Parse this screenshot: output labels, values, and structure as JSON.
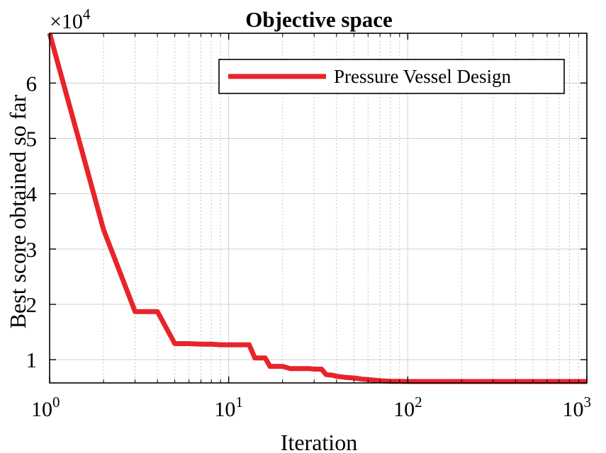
{
  "chart_data": {
    "type": "line",
    "title": "Objective space",
    "xlabel": "Iteration",
    "ylabel": "Best score obtained so far",
    "xscale": "log",
    "xlim": [
      1,
      1000
    ],
    "ylim": [
      5800,
      69000
    ],
    "y_multiplier": "×10",
    "y_multiplier_exponent": "4",
    "grid": true,
    "legend_position": "top-right",
    "x_ticks": [
      {
        "value": 1,
        "base": "10",
        "exp": "0"
      },
      {
        "value": 10,
        "base": "10",
        "exp": "1"
      },
      {
        "value": 100,
        "base": "10",
        "exp": "2"
      },
      {
        "value": 1000,
        "base": "10",
        "exp": "3"
      }
    ],
    "y_ticks": [
      {
        "value": 10000,
        "label": "1"
      },
      {
        "value": 20000,
        "label": "2"
      },
      {
        "value": 30000,
        "label": "3"
      },
      {
        "value": 40000,
        "label": "4"
      },
      {
        "value": 50000,
        "label": "5"
      },
      {
        "value": 60000,
        "label": "6"
      }
    ],
    "series": [
      {
        "name": "Pressure Vessel Design",
        "color": "#e8242a",
        "x": [
          1,
          2,
          3,
          4,
          5,
          6,
          7,
          8,
          9,
          10,
          11,
          12,
          13,
          14,
          15,
          16,
          17,
          18,
          20,
          22,
          25,
          28,
          30,
          33,
          35,
          38,
          40,
          45,
          50,
          55,
          60,
          70,
          80,
          90,
          100,
          150,
          200,
          300,
          500,
          700,
          1000
        ],
        "y": [
          69000,
          33500,
          18700,
          18700,
          12900,
          12900,
          12800,
          12800,
          12700,
          12700,
          12700,
          12700,
          12700,
          10300,
          10300,
          10300,
          8800,
          8800,
          8800,
          8400,
          8400,
          8400,
          8300,
          8300,
          7300,
          7200,
          7000,
          6800,
          6700,
          6500,
          6400,
          6200,
          6100,
          6100,
          6059,
          6059,
          6059,
          6059,
          6059,
          6059,
          6059
        ]
      }
    ]
  }
}
